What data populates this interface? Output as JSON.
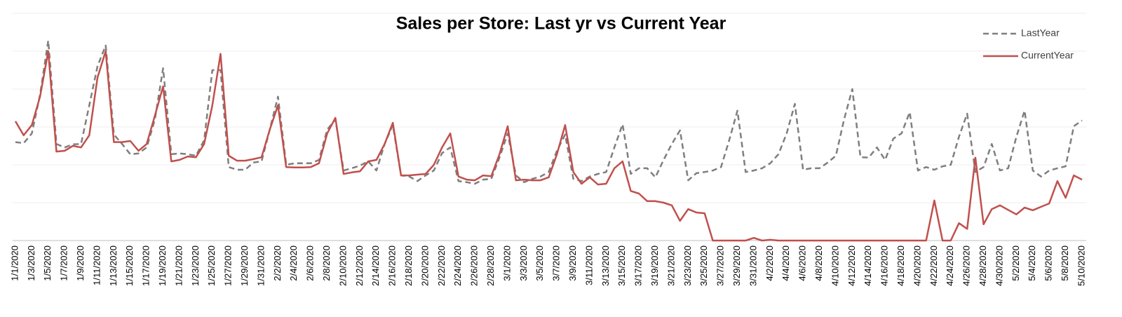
{
  "chart_data": {
    "type": "line",
    "title": "Sales per Store: Last yr vs Current Year",
    "categories": [
      "1/1/2020",
      null,
      "1/3/2020",
      null,
      "1/5/2020",
      null,
      "1/7/2020",
      null,
      "1/9/2020",
      null,
      "1/11/2020",
      null,
      "1/13/2020",
      null,
      "1/15/2020",
      null,
      "1/17/2020",
      null,
      "1/19/2020",
      null,
      "1/21/2020",
      null,
      "1/23/2020",
      null,
      "1/25/2020",
      null,
      "1/27/2020",
      null,
      "1/29/2020",
      null,
      "1/31/2020",
      null,
      "2/2/2020",
      null,
      "2/4/2020",
      null,
      "2/6/2020",
      null,
      "2/8/2020",
      null,
      "2/10/2020",
      null,
      "2/12/2020",
      null,
      "2/14/2020",
      null,
      "2/16/2020",
      null,
      "2/18/2020",
      null,
      "2/20/2020",
      null,
      "2/22/2020",
      null,
      "2/24/2020",
      null,
      "2/26/2020",
      null,
      "2/28/2020",
      null,
      "3/1/2020",
      null,
      "3/3/2020",
      null,
      "3/5/2020",
      null,
      "3/7/2020",
      null,
      "3/9/2020",
      null,
      "3/11/2020",
      null,
      "3/13/2020",
      null,
      "3/15/2020",
      null,
      "3/17/2020",
      null,
      "3/19/2020",
      null,
      "3/21/2020",
      null,
      "3/23/2020",
      null,
      "3/25/2020",
      null,
      "3/27/2020",
      null,
      "3/29/2020",
      null,
      "3/31/2020",
      null,
      "4/2/2020",
      null,
      "4/4/2020",
      null,
      "4/6/2020",
      null,
      "4/8/2020",
      null,
      "4/10/2020",
      null,
      "4/12/2020",
      null,
      "4/14/2020",
      null,
      "4/16/2020",
      null,
      "4/18/2020",
      null,
      "4/20/2020",
      null,
      "4/22/2020",
      null,
      "4/24/2020",
      null,
      "4/26/2020",
      null,
      "4/28/2020",
      null,
      "4/30/2020",
      null,
      "5/2/2020",
      null,
      "5/4/2020",
      null,
      "5/6/2020",
      null,
      "5/8/2020",
      null,
      "5/10/2020"
    ],
    "series": [
      {
        "name": "LastYear",
        "color": "#7f7f7f",
        "dash": true,
        "values": [
          2.6,
          2.57,
          2.83,
          3.85,
          5.28,
          2.55,
          2.46,
          2.54,
          2.55,
          3.57,
          4.6,
          5.15,
          2.8,
          2.55,
          2.28,
          2.3,
          2.46,
          3.2,
          4.55,
          2.28,
          2.3,
          2.28,
          2.24,
          2.65,
          4.5,
          4.5,
          1.94,
          1.87,
          1.87,
          2.06,
          2.09,
          2.93,
          3.8,
          2.0,
          2.04,
          2.04,
          2.04,
          2.13,
          2.93,
          3.2,
          1.85,
          1.91,
          1.98,
          2.09,
          1.85,
          2.55,
          3.05,
          1.72,
          1.69,
          1.57,
          1.72,
          1.85,
          2.31,
          2.46,
          1.57,
          1.54,
          1.5,
          1.61,
          1.63,
          2.19,
          2.83,
          1.72,
          1.54,
          1.63,
          1.69,
          1.81,
          2.37,
          2.8,
          1.63,
          1.57,
          1.69,
          1.76,
          1.81,
          2.46,
          3.07,
          1.76,
          1.91,
          1.91,
          1.67,
          2.13,
          2.55,
          2.91,
          1.59,
          1.78,
          1.81,
          1.85,
          1.94,
          2.65,
          3.43,
          1.81,
          1.85,
          1.91,
          2.04,
          2.28,
          2.83,
          3.61,
          1.87,
          1.91,
          1.91,
          2.06,
          2.24,
          3.2,
          4.0,
          2.2,
          2.19,
          2.46,
          2.13,
          2.69,
          2.83,
          3.39,
          1.85,
          1.94,
          1.87,
          1.96,
          2.0,
          2.74,
          3.35,
          1.81,
          1.94,
          2.55,
          1.85,
          1.91,
          2.74,
          3.43,
          1.85,
          1.69,
          1.85,
          1.91,
          1.96,
          3.02,
          3.17
        ]
      },
      {
        "name": "CurrentYear",
        "color": "#c0504d",
        "dash": false,
        "values": [
          3.15,
          2.78,
          3.05,
          3.8,
          5.0,
          2.35,
          2.37,
          2.5,
          2.46,
          2.78,
          4.3,
          5.0,
          2.6,
          2.6,
          2.63,
          2.37,
          2.55,
          3.3,
          4.07,
          2.09,
          2.13,
          2.22,
          2.2,
          2.55,
          3.57,
          4.93,
          2.24,
          2.11,
          2.11,
          2.15,
          2.2,
          2.93,
          3.57,
          1.94,
          1.93,
          1.93,
          1.94,
          2.04,
          2.83,
          3.24,
          1.76,
          1.8,
          1.83,
          2.09,
          2.13,
          2.55,
          3.11,
          1.72,
          1.72,
          1.74,
          1.76,
          2.0,
          2.46,
          2.83,
          1.69,
          1.61,
          1.59,
          1.72,
          1.7,
          2.28,
          3.02,
          1.59,
          1.61,
          1.59,
          1.59,
          1.67,
          2.28,
          3.05,
          1.81,
          1.5,
          1.67,
          1.48,
          1.5,
          1.91,
          2.09,
          1.31,
          1.24,
          1.04,
          1.04,
          1.0,
          0.93,
          0.52,
          0.83,
          0.74,
          0.72,
          0,
          0,
          0,
          0,
          0,
          0.07,
          0,
          0.02,
          0,
          0,
          0,
          0,
          0,
          0,
          0,
          0,
          0,
          0,
          0,
          0,
          0,
          0,
          0,
          0,
          0,
          0,
          0,
          1.06,
          0,
          0,
          0.46,
          0.31,
          2.19,
          0.43,
          0.83,
          0.93,
          0.81,
          0.69,
          0.87,
          0.8,
          0.89,
          0.98,
          1.57,
          1.13,
          1.72,
          1.61
        ]
      }
    ],
    "ylim": [
      0,
      6
    ],
    "grid_lines": [
      1,
      2,
      3,
      4,
      5,
      6
    ],
    "legend": "top-right"
  }
}
